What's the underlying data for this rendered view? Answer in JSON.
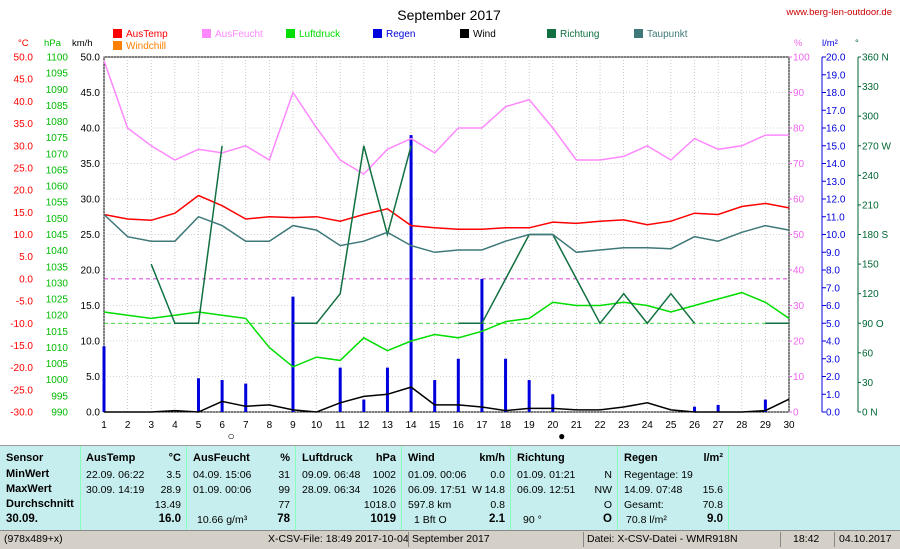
{
  "title": "September 2017",
  "website": "www.berg-len-outdoor.de",
  "chart_data": {
    "type": "line",
    "x": [
      1,
      2,
      3,
      4,
      5,
      6,
      7,
      8,
      9,
      10,
      11,
      12,
      13,
      14,
      15,
      16,
      17,
      18,
      19,
      20,
      21,
      22,
      23,
      24,
      25,
      26,
      27,
      28,
      29,
      30
    ],
    "xlim": [
      1,
      30
    ],
    "axes": {
      "temp": {
        "label": "°C",
        "color": "#ff0000",
        "min": -30,
        "max": 50,
        "step": 5
      },
      "pressure": {
        "label": "hPa",
        "color": "#00bb00",
        "min": 990,
        "max": 1100,
        "step": 5
      },
      "wind": {
        "label": "km/h",
        "color": "#000000",
        "min": 0,
        "max": 50,
        "step": 5
      },
      "humidity": {
        "label": "%",
        "color": "#ee66ee",
        "min": 0,
        "max": 100,
        "step": 10
      },
      "rain": {
        "label": "l/m²",
        "color": "#0000dd",
        "min": 0,
        "max": 20,
        "step": 1
      },
      "direction": {
        "label": "°",
        "color": "#006633",
        "ticks": [
          0,
          30,
          60,
          90,
          120,
          150,
          180,
          210,
          240,
          270,
          300,
          330,
          360
        ],
        "tick_labels": [
          "0 N",
          "30",
          "60",
          "90 O",
          "120",
          "150",
          "180 S",
          "210",
          "240",
          "270 W",
          "300",
          "330",
          "360 N"
        ]
      }
    },
    "legend": [
      {
        "name": "AusTemp",
        "color": "#ff0000"
      },
      {
        "name": "Windchill",
        "color": "#ff8000"
      },
      {
        "name": "AusFeucht",
        "color": "#ff88ff"
      },
      {
        "name": "Luftdruck",
        "color": "#00dd00"
      },
      {
        "name": "Regen",
        "color": "#0000dd"
      },
      {
        "name": "Wind",
        "color": "#000000"
      },
      {
        "name": "Richtung",
        "color": "#107040"
      },
      {
        "name": "Taupunkt",
        "color": "#3f7878"
      }
    ],
    "series": [
      {
        "name": "AusTemp",
        "axis": "temp",
        "color": "#ff0000",
        "values": [
          14.5,
          13.5,
          13.2,
          14.8,
          18.8,
          16.5,
          13.5,
          14.0,
          13.8,
          14.0,
          13.0,
          14.5,
          15.8,
          12.0,
          11.5,
          11.2,
          11.2,
          11.5,
          11.5,
          12.8,
          12.5,
          13.0,
          13.3,
          12.2,
          13.0,
          14.8,
          14.5,
          16.3,
          17.0,
          16.0
        ]
      },
      {
        "name": "AusFeucht",
        "axis": "humidity",
        "color": "#ff88ff",
        "values": [
          99,
          80,
          75,
          71,
          74,
          73,
          75,
          71,
          90,
          80,
          71,
          67,
          74,
          77,
          73,
          80,
          80,
          86,
          88,
          80,
          71,
          71,
          72,
          75,
          71,
          77,
          74,
          75,
          78,
          78
        ]
      },
      {
        "name": "Luftdruck",
        "axis": "pressure",
        "color": "#00dd00",
        "values": [
          1021,
          1020,
          1019,
          1020,
          1021,
          1020,
          1019,
          1010,
          1004,
          1007,
          1006,
          1013,
          1009,
          1012,
          1014,
          1013,
          1015,
          1018,
          1019,
          1024,
          1023,
          1023,
          1024,
          1023,
          1021,
          1023,
          1025,
          1027,
          1024,
          1019
        ]
      },
      {
        "name": "Regen",
        "axis": "rain",
        "type": "bar",
        "color": "#0000dd",
        "values": [
          3.7,
          0,
          0,
          0,
          1.9,
          1.8,
          1.6,
          0,
          6.5,
          0,
          2.5,
          0.7,
          2.5,
          15.6,
          1.8,
          3.0,
          7.5,
          3.0,
          1.8,
          1.0,
          0,
          0,
          0,
          0,
          0,
          0.3,
          0.4,
          0,
          0.7,
          0
        ]
      },
      {
        "name": "Wind",
        "axis": "wind",
        "color": "#000000",
        "values": [
          0,
          0,
          0,
          0.2,
          0,
          1.5,
          0.8,
          1.0,
          0.3,
          0,
          1.3,
          2.2,
          2.5,
          3.5,
          1.0,
          1.0,
          0.7,
          0.2,
          0.5,
          0.5,
          0.3,
          0.3,
          0.7,
          1.3,
          0.3,
          0,
          0,
          0,
          0.2,
          1.8
        ]
      },
      {
        "name": "Richtung",
        "axis": "direction",
        "color": "#107040",
        "gaps": true,
        "values": [
          null,
          null,
          150,
          90,
          90,
          270,
          null,
          null,
          90,
          90,
          120,
          270,
          180,
          270,
          null,
          90,
          90,
          135,
          180,
          180,
          135,
          90,
          120,
          90,
          120,
          90,
          null,
          null,
          90,
          90
        ]
      },
      {
        "name": "Taupunkt",
        "axis": "temp",
        "color": "#3f7878",
        "values": [
          14.5,
          9.5,
          8.5,
          8.5,
          14.0,
          12.0,
          8.5,
          8.5,
          12.0,
          11.0,
          7.5,
          8.5,
          10.5,
          7.5,
          6.0,
          6.5,
          6.5,
          8.5,
          10.0,
          10.0,
          6.0,
          6.5,
          7.0,
          7.0,
          6.8,
          9.5,
          8.5,
          10.5,
          12.0,
          11.0
        ]
      }
    ],
    "markers": [
      {
        "day": 6,
        "symbol": "○"
      },
      {
        "day": 20,
        "symbol": "●"
      }
    ]
  },
  "stats": {
    "sensor": {
      "header": "Sensor",
      "rows": [
        "MinWert",
        "MaxWert",
        "Durchschnitt",
        "30.09."
      ]
    },
    "austemp": {
      "header": "AusTemp",
      "unit": "°C",
      "min_date": "22.09.  06:22",
      "min_val": "3.5",
      "max_date": "30.09.  14:19",
      "max_val": "28.9",
      "avg": "13.49",
      "current": "16.0"
    },
    "ausfeucht": {
      "header": "AusFeucht",
      "unit": "%",
      "min_date": "04.09.  15:06",
      "min_val": "31",
      "max_date": "01.09.  00:06",
      "max_val": "99",
      "avg": "77",
      "extra": "10.66 g/m³",
      "current": "78"
    },
    "luftdruck": {
      "header": "Luftdruck",
      "unit": "hPa",
      "min_date": "09.09.  06:48",
      "min_val": "1002",
      "max_date": "28.09.  06:34",
      "max_val": "1026",
      "avg": "1018.0",
      "current": "1019"
    },
    "wind": {
      "header": "Wind",
      "unit": "km/h",
      "min_date": "01.09.  00:06",
      "min_val": "0.0",
      "max_date": "06.09.  17:51",
      "max_dir": "W",
      "max_val": "14.8",
      "avg_label": "597.8 km",
      "avg": "0.8",
      "cur_label": "1 Bft O",
      "current": "2.1"
    },
    "richtung": {
      "header": "Richtung",
      "min_date": "01.09.  01:21",
      "min_dir": "N",
      "max_date": "06.09.  12:51",
      "max_dir": "NW",
      "avg": "O",
      "cur_label": "90 °",
      "current": "O"
    },
    "regen": {
      "header": "Regen",
      "unit": "l/m²",
      "row1": "Regentage: 19",
      "max_date": "14.09.  07:48",
      "max_val": "15.6",
      "total_label": "Gesamt:",
      "total": "70.8",
      "cur_label": "70.8 l/m²",
      "current": "9.0"
    }
  },
  "status": {
    "size": "(978x489+x)",
    "file": "X-CSV-File:  18:49  2017-10-04",
    "month": "September 2017",
    "source": "Datei: X-CSV-Datei - WMR918N",
    "time": "18:42",
    "date": "04.10.2017"
  }
}
